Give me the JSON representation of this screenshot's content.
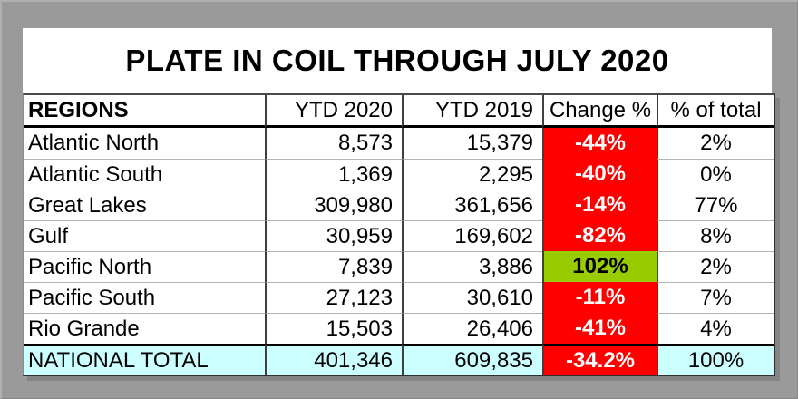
{
  "palette": {
    "page_background": "#9a9a9a",
    "negative_red": "#ff0000",
    "positive_green": "#99cc00",
    "total_cyan": "#ccffff",
    "cell_white": "#ffffff",
    "text_black": "#000000",
    "text_white": "#ffffff"
  },
  "title": "PLATE IN COIL THROUGH JULY 2020",
  "table": {
    "headers": {
      "regions": "REGIONS",
      "ytd2020": "YTD 2020",
      "ytd2019": "YTD 2019",
      "change": "Change %",
      "pct_total": "% of total"
    },
    "rows": [
      {
        "region": "Atlantic North",
        "ytd2020": "8,573",
        "ytd2019": "15,379",
        "change": "-44%",
        "pct_total": "2%",
        "change_bg": "#ff0000",
        "change_fg": "#ffffff"
      },
      {
        "region": "Atlantic South",
        "ytd2020": "1,369",
        "ytd2019": "2,295",
        "change": "-40%",
        "pct_total": "0%",
        "change_bg": "#ff0000",
        "change_fg": "#ffffff"
      },
      {
        "region": "Great Lakes",
        "ytd2020": "309,980",
        "ytd2019": "361,656",
        "change": "-14%",
        "pct_total": "77%",
        "change_bg": "#ff0000",
        "change_fg": "#ffffff"
      },
      {
        "region": "Gulf",
        "ytd2020": "30,959",
        "ytd2019": "169,602",
        "change": "-82%",
        "pct_total": "8%",
        "change_bg": "#ff0000",
        "change_fg": "#ffffff"
      },
      {
        "region": "Pacific North",
        "ytd2020": "7,839",
        "ytd2019": "3,886",
        "change": "102%",
        "pct_total": "2%",
        "change_bg": "#99cc00",
        "change_fg": "#000000"
      },
      {
        "region": "Pacific South",
        "ytd2020": "27,123",
        "ytd2019": "30,610",
        "change": "-11%",
        "pct_total": "7%",
        "change_bg": "#ff0000",
        "change_fg": "#ffffff"
      },
      {
        "region": "Rio Grande",
        "ytd2020": "15,503",
        "ytd2019": "26,406",
        "change": "-41%",
        "pct_total": "4%",
        "change_bg": "#ff0000",
        "change_fg": "#ffffff"
      }
    ],
    "total": {
      "region": "NATIONAL TOTAL",
      "ytd2020": "401,346",
      "ytd2019": "609,835",
      "change": "-34.2%",
      "pct_total": "100%",
      "row_bg": "#ccffff",
      "change_bg": "#ff0000",
      "change_fg": "#ffffff"
    }
  }
}
